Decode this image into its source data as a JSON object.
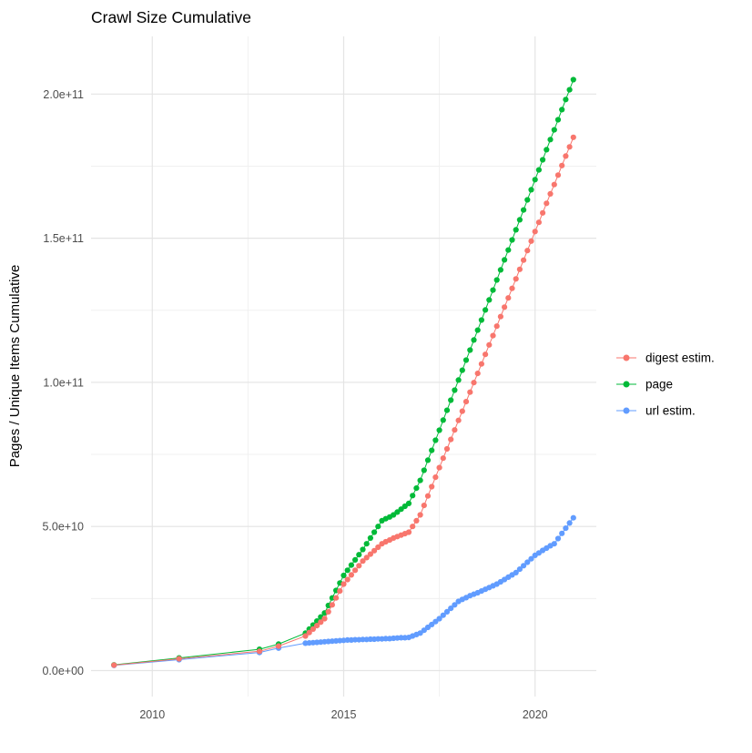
{
  "title": "Crawl Size Cumulative",
  "axes": {
    "y_label": "Pages / Unique Items Cumulative",
    "x_label": ""
  },
  "legend": {
    "position": "right",
    "items": [
      {
        "label": "digest estim.",
        "color": "#F8766D"
      },
      {
        "label": "page",
        "color": "#00BA38"
      },
      {
        "label": "url estim.",
        "color": "#619CFF"
      }
    ]
  },
  "chart_data": {
    "type": "scatter",
    "title": "Crawl Size Cumulative",
    "xlabel": "",
    "ylabel": "Pages / Unique Items Cumulative",
    "xlim": [
      2008.4,
      2021.6
    ],
    "ylim": [
      -9000000000.0,
      220000000000.0
    ],
    "grid": true,
    "legend_position": "right",
    "x_major_ticks": [
      {
        "value": 2010,
        "label": "2010"
      },
      {
        "value": 2015,
        "label": "2015"
      },
      {
        "value": 2020,
        "label": "2020"
      }
    ],
    "x_minor_ticks": [
      2012.5,
      2017.5
    ],
    "y_major_ticks": [
      {
        "value": 0,
        "label": "0.0e+00"
      },
      {
        "value": 50000000000.0,
        "label": "5.0e+10"
      },
      {
        "value": 100000000000.0,
        "label": "1.0e+11"
      },
      {
        "value": 150000000000.0,
        "label": "1.5e+11"
      },
      {
        "value": 200000000000.0,
        "label": "2.0e+11"
      }
    ],
    "y_minor_ticks": [
      25000000000.0,
      75000000000.0,
      125000000000.0,
      175000000000.0
    ],
    "y_values_unit": 1000000000.0,
    "x": [
      2009,
      2010.7,
      2012.8,
      2013.3,
      2014,
      2014.1,
      2014.2,
      2014.3,
      2014.4,
      2014.5,
      2014.6,
      2014.7,
      2014.8,
      2014.9,
      2015,
      2015.1,
      2015.2,
      2015.3,
      2015.4,
      2015.5,
      2015.6,
      2015.7,
      2015.8,
      2015.9,
      2016,
      2016.1,
      2016.2,
      2016.3,
      2016.4,
      2016.5,
      2016.6,
      2016.7,
      2016.8,
      2016.9,
      2017,
      2017.1,
      2017.2,
      2017.3,
      2017.4,
      2017.5,
      2017.6,
      2017.7,
      2017.8,
      2017.9,
      2018,
      2018.1,
      2018.2,
      2018.3,
      2018.4,
      2018.5,
      2018.6,
      2018.7,
      2018.8,
      2018.9,
      2019,
      2019.1,
      2019.2,
      2019.3,
      2019.4,
      2019.5,
      2019.6,
      2019.7,
      2019.8,
      2019.9,
      2020,
      2020.1,
      2020.2,
      2020.3,
      2020.4,
      2020.5,
      2020.6,
      2020.7,
      2020.8,
      2020.9,
      2021
    ],
    "series": [
      {
        "name": "digest estim.",
        "color": "#F8766D",
        "values": [
          1.9,
          4.1,
          6.7,
          8.5,
          12,
          13.2,
          14.4,
          15.6,
          16.8,
          18,
          20.4,
          22.8,
          25.2,
          27.6,
          30,
          31.6,
          33.2,
          34.8,
          36.4,
          38,
          39.2,
          40.4,
          41.6,
          42.8,
          44,
          44.7,
          45.3,
          46,
          46.5,
          47,
          47.5,
          48,
          50,
          52,
          54,
          57.3,
          60.6,
          63.8,
          67.1,
          70.4,
          73.7,
          76.9,
          80.2,
          83.5,
          86.8,
          90,
          93.3,
          96.6,
          99.9,
          103.1,
          106.4,
          109.7,
          113,
          116.2,
          119.5,
          122.8,
          126.1,
          129.3,
          132.6,
          135.9,
          139.2,
          142.4,
          145.7,
          149,
          152.3,
          155.5,
          158.8,
          162.1,
          165.4,
          168.6,
          171.9,
          175.2,
          178.5,
          181.7,
          185
        ]
      },
      {
        "name": "page",
        "color": "#00BA38",
        "values": [
          2,
          4.4,
          7.4,
          9.2,
          13,
          14.4,
          15.8,
          17.2,
          18.6,
          20,
          22.6,
          25.2,
          27.8,
          30.4,
          33,
          34.8,
          36.6,
          38.4,
          40.2,
          42,
          44,
          46,
          48,
          50,
          52,
          52.7,
          53.3,
          54,
          55,
          56,
          57,
          58,
          60.7,
          63.3,
          66,
          69.5,
          73,
          76.4,
          79.9,
          83.4,
          86.9,
          90.3,
          93.8,
          97.3,
          100.8,
          104.2,
          107.7,
          111.2,
          114.7,
          118.1,
          121.6,
          125.1,
          128.6,
          132,
          135.5,
          139,
          142.5,
          145.9,
          149.4,
          152.9,
          156.4,
          159.8,
          163.3,
          166.8,
          170.3,
          173.7,
          177.2,
          180.7,
          184.2,
          187.6,
          191.1,
          194.6,
          198.1,
          201.5,
          205
        ]
      },
      {
        "name": "url estim.",
        "color": "#619CFF",
        "values": [
          1.8,
          3.8,
          6.3,
          7.8,
          9.5,
          9.6,
          9.7,
          9.8,
          9.9,
          10,
          10.1,
          10.2,
          10.3,
          10.4,
          10.5,
          10.6,
          10.6,
          10.7,
          10.7,
          10.8,
          10.8,
          10.9,
          10.9,
          11,
          11,
          11.1,
          11.1,
          11.2,
          11.3,
          11.4,
          11.4,
          11.5,
          12,
          12.5,
          13,
          14,
          15,
          16,
          17,
          18,
          19.2,
          20.4,
          21.6,
          22.8,
          24,
          24.7,
          25.3,
          26,
          26.5,
          27,
          27.6,
          28.2,
          28.8,
          29.4,
          30,
          30.8,
          31.6,
          32.4,
          33.2,
          34,
          35.2,
          36.4,
          37.6,
          38.8,
          40,
          40.8,
          41.7,
          42.5,
          43.3,
          44,
          45.8,
          47.6,
          49.4,
          51.2,
          53
        ]
      }
    ]
  }
}
